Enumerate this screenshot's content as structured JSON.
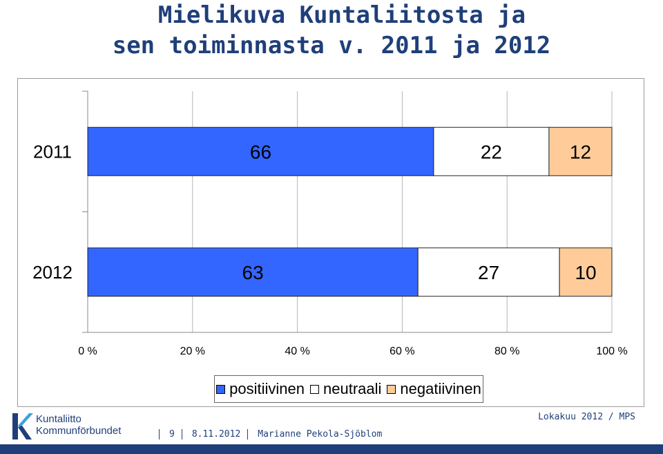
{
  "title": {
    "line1": "Mielikuva Kuntaliitosta ja",
    "line2": "sen toiminnasta v. 2011 ja 2012"
  },
  "chart_data": {
    "type": "bar",
    "orientation": "horizontal",
    "stacked": "percent",
    "categories": [
      "2011",
      "2012"
    ],
    "series": [
      {
        "name": "positiivinen",
        "values": [
          66,
          63
        ],
        "color": "#3366ff"
      },
      {
        "name": "neutraali",
        "values": [
          22,
          27
        ],
        "color": "#ffffff"
      },
      {
        "name": "negatiivinen",
        "values": [
          12,
          10
        ],
        "color": "#ffcc99"
      }
    ],
    "x_ticks": [
      "0 %",
      "20 %",
      "40 %",
      "60 %",
      "80 %",
      "100 %"
    ],
    "xlim": [
      0,
      100
    ],
    "grid": true,
    "legend_position": "bottom"
  },
  "footer": {
    "logo_line1": "Kuntaliitto",
    "logo_line2": "Kommunförbundet",
    "page_number": "9",
    "date": "8.11.2012",
    "author": "Marianne Pekola-Sjöblom",
    "right_text": "Lokakuu 2012 / MPS"
  },
  "colors": {
    "brand": "#1f3f7a",
    "logo_accent": "#3aa3d8"
  }
}
